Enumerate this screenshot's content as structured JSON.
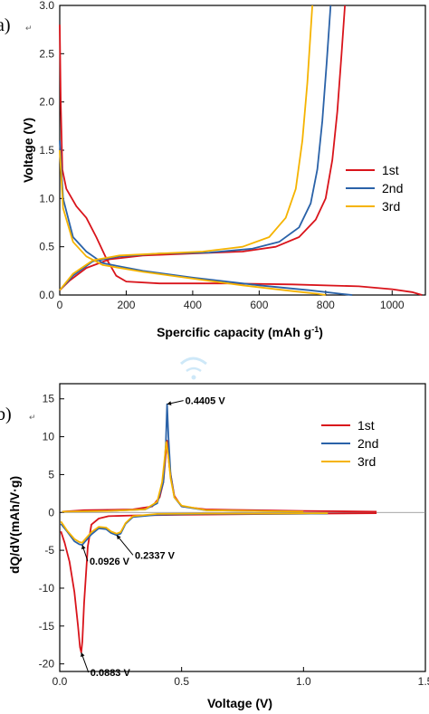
{
  "colors": {
    "1st": "#d9141b",
    "2nd": "#2a62a8",
    "3rd": "#f5b300"
  },
  "chart_data": [
    {
      "panel_label": "a)",
      "type": "line",
      "xlabel": "Spercific capacity (mAh g",
      "xlabel_sup": "-1",
      "xlabel_end": ")",
      "ylabel": "Voltage (V)",
      "xlim": [
        0,
        1100
      ],
      "ylim": [
        0,
        3.0
      ],
      "xticks": [
        "0",
        "200",
        "400",
        "600",
        "800",
        "1000"
      ],
      "yticks": [
        "0.0",
        "0.5",
        "1.0",
        "1.5",
        "2.0",
        "2.5",
        "3.0"
      ],
      "legend": [
        "1st",
        "2nd",
        "3rd"
      ],
      "legend_position": "right",
      "series": [
        {
          "name": "1st",
          "curves": [
            [
              [
                0,
                2.8
              ],
              [
                3,
                2.0
              ],
              [
                8,
                1.3
              ],
              [
                20,
                1.1
              ],
              [
                50,
                0.92
              ],
              [
                80,
                0.8
              ],
              [
                110,
                0.6
              ],
              [
                140,
                0.38
              ],
              [
                170,
                0.2
              ],
              [
                200,
                0.14
              ],
              [
                300,
                0.12
              ],
              [
                500,
                0.12
              ],
              [
                700,
                0.11
              ],
              [
                900,
                0.09
              ],
              [
                1000,
                0.06
              ],
              [
                1060,
                0.03
              ],
              [
                1090,
                0.0
              ]
            ],
            [
              [
                0,
                0.05
              ],
              [
                30,
                0.15
              ],
              [
                80,
                0.28
              ],
              [
                150,
                0.37
              ],
              [
                250,
                0.41
              ],
              [
                400,
                0.43
              ],
              [
                550,
                0.45
              ],
              [
                650,
                0.5
              ],
              [
                720,
                0.6
              ],
              [
                770,
                0.78
              ],
              [
                800,
                1.0
              ],
              [
                820,
                1.4
              ],
              [
                835,
                1.9
              ],
              [
                848,
                2.5
              ],
              [
                858,
                3.0
              ]
            ]
          ]
        },
        {
          "name": "2nd",
          "curves": [
            [
              [
                0,
                1.6
              ],
              [
                10,
                1.0
              ],
              [
                40,
                0.6
              ],
              [
                80,
                0.45
              ],
              [
                130,
                0.33
              ],
              [
                250,
                0.25
              ],
              [
                400,
                0.18
              ],
              [
                600,
                0.1
              ],
              [
                750,
                0.05
              ],
              [
                850,
                0.01
              ],
              [
                880,
                0.0
              ]
            ],
            [
              [
                0,
                0.05
              ],
              [
                40,
                0.2
              ],
              [
                100,
                0.35
              ],
              [
                180,
                0.4
              ],
              [
                300,
                0.43
              ],
              [
                450,
                0.44
              ],
              [
                580,
                0.48
              ],
              [
                660,
                0.55
              ],
              [
                720,
                0.7
              ],
              [
                755,
                0.95
              ],
              [
                775,
                1.3
              ],
              [
                790,
                1.8
              ],
              [
                803,
                2.4
              ],
              [
                815,
                3.0
              ]
            ]
          ]
        },
        {
          "name": "3rd",
          "curves": [
            [
              [
                0,
                1.5
              ],
              [
                10,
                0.9
              ],
              [
                40,
                0.55
              ],
              [
                80,
                0.4
              ],
              [
                130,
                0.31
              ],
              [
                250,
                0.24
              ],
              [
                400,
                0.17
              ],
              [
                550,
                0.1
              ],
              [
                700,
                0.04
              ],
              [
                780,
                0.01
              ],
              [
                800,
                0.0
              ]
            ],
            [
              [
                0,
                0.05
              ],
              [
                40,
                0.22
              ],
              [
                100,
                0.36
              ],
              [
                180,
                0.41
              ],
              [
                300,
                0.43
              ],
              [
                430,
                0.45
              ],
              [
                550,
                0.5
              ],
              [
                630,
                0.6
              ],
              [
                680,
                0.8
              ],
              [
                710,
                1.1
              ],
              [
                730,
                1.6
              ],
              [
                745,
                2.2
              ],
              [
                760,
                3.0
              ]
            ]
          ]
        }
      ]
    },
    {
      "panel_label": "b)",
      "type": "line",
      "xlabel": "Voltage (V)",
      "ylabel": "dQ/dV(mAh/V·g)",
      "xlim": [
        0,
        1.5
      ],
      "ylim": [
        -21,
        17
      ],
      "xticks": [
        "0.0",
        "0.5",
        "1.0",
        "1.5"
      ],
      "yticks": [
        "15",
        "10",
        "5",
        "0",
        "-5",
        "-10",
        "-15",
        "-20"
      ],
      "legend": [
        "1st",
        "2nd",
        "3rd"
      ],
      "legend_position": "right",
      "annotations": [
        {
          "text": "0.4405 V",
          "x": 0.4405,
          "y": 14.3
        },
        {
          "text": "0.0926 V",
          "x": 0.0926,
          "y": -4.3
        },
        {
          "text": "0.2337 V",
          "x": 0.2337,
          "y": -3.0
        },
        {
          "text": "0.0883 V",
          "x": 0.0883,
          "y": -18.5
        }
      ],
      "series": [
        {
          "name": "1st",
          "curves": [
            [
              [
                0.005,
                -2.5
              ],
              [
                0.02,
                -4
              ],
              [
                0.04,
                -6.5
              ],
              [
                0.06,
                -10.5
              ],
              [
                0.075,
                -15
              ],
              [
                0.083,
                -17.8
              ],
              [
                0.0883,
                -18.5
              ],
              [
                0.093,
                -17
              ],
              [
                0.1,
                -12
              ],
              [
                0.115,
                -4.5
              ],
              [
                0.13,
                -1.6
              ],
              [
                0.16,
                -0.8
              ],
              [
                0.2,
                -0.5
              ],
              [
                0.3,
                -0.4
              ],
              [
                0.5,
                -0.3
              ],
              [
                0.7,
                -0.25
              ],
              [
                0.9,
                -0.2
              ],
              [
                1.1,
                -0.15
              ],
              [
                1.3,
                -0.1
              ]
            ],
            [
              [
                0.01,
                0.1
              ],
              [
                0.1,
                0.3
              ],
              [
                0.3,
                0.4
              ],
              [
                0.38,
                0.8
              ],
              [
                0.41,
                2
              ],
              [
                0.425,
                4
              ],
              [
                0.44,
                9.5
              ],
              [
                0.45,
                6
              ],
              [
                0.47,
                2.2
              ],
              [
                0.5,
                0.8
              ],
              [
                0.6,
                0.4
              ],
              [
                0.8,
                0.3
              ],
              [
                1.0,
                0.2
              ],
              [
                1.3,
                0.1
              ]
            ]
          ]
        },
        {
          "name": "2nd",
          "curves": [
            [
              [
                0.005,
                -1.5
              ],
              [
                0.03,
                -2.5
              ],
              [
                0.06,
                -3.8
              ],
              [
                0.08,
                -4.2
              ],
              [
                0.0926,
                -4.3
              ],
              [
                0.105,
                -3.8
              ],
              [
                0.13,
                -2.9
              ],
              [
                0.16,
                -2.1
              ],
              [
                0.19,
                -2.2
              ],
              [
                0.21,
                -2.7
              ],
              [
                0.2337,
                -3.0
              ],
              [
                0.25,
                -2.8
              ],
              [
                0.27,
                -1.5
              ],
              [
                0.3,
                -0.6
              ],
              [
                0.4,
                -0.3
              ],
              [
                0.6,
                -0.2
              ],
              [
                0.9,
                -0.2
              ],
              [
                1.1,
                -0.15
              ]
            ],
            [
              [
                0.01,
                0.1
              ],
              [
                0.2,
                0.2
              ],
              [
                0.35,
                0.4
              ],
              [
                0.4,
                1.2
              ],
              [
                0.425,
                4
              ],
              [
                0.435,
                9
              ],
              [
                0.4405,
                14.3
              ],
              [
                0.446,
                10
              ],
              [
                0.455,
                5
              ],
              [
                0.47,
                2
              ],
              [
                0.5,
                0.8
              ],
              [
                0.6,
                0.3
              ],
              [
                0.8,
                0.2
              ],
              [
                1.0,
                0.1
              ]
            ]
          ]
        },
        {
          "name": "3rd",
          "curves": [
            [
              [
                0.005,
                -1.2
              ],
              [
                0.03,
                -2.4
              ],
              [
                0.06,
                -3.5
              ],
              [
                0.08,
                -3.9
              ],
              [
                0.092,
                -4.0
              ],
              [
                0.105,
                -3.5
              ],
              [
                0.13,
                -2.6
              ],
              [
                0.16,
                -1.9
              ],
              [
                0.19,
                -2.0
              ],
              [
                0.21,
                -2.5
              ],
              [
                0.233,
                -2.8
              ],
              [
                0.25,
                -2.6
              ],
              [
                0.27,
                -1.4
              ],
              [
                0.3,
                -0.5
              ],
              [
                0.4,
                -0.2
              ],
              [
                0.6,
                -0.15
              ],
              [
                0.9,
                -0.15
              ],
              [
                1.1,
                -0.1
              ]
            ],
            [
              [
                0.01,
                0.1
              ],
              [
                0.2,
                0.2
              ],
              [
                0.35,
                0.4
              ],
              [
                0.4,
                1.4
              ],
              [
                0.42,
                4
              ],
              [
                0.43,
                7
              ],
              [
                0.437,
                9.3
              ],
              [
                0.445,
                7.5
              ],
              [
                0.455,
                4.5
              ],
              [
                0.47,
                2
              ],
              [
                0.5,
                0.9
              ],
              [
                0.6,
                0.3
              ],
              [
                0.8,
                0.2
              ],
              [
                1.0,
                0.1
              ]
            ]
          ]
        }
      ]
    }
  ]
}
